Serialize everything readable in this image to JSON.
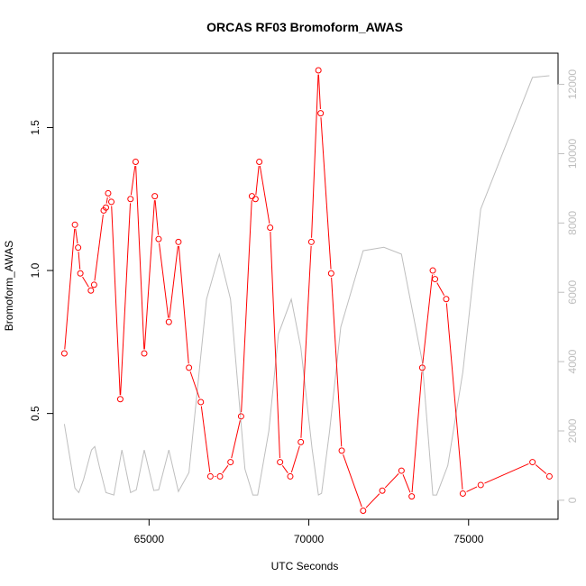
{
  "chart_data": {
    "type": "line",
    "title": "ORCAS RF03 Bromoform_AWAS",
    "xlabel": "UTC Seconds",
    "ylabel": "Bromoform_AWAS",
    "xlim": [
      62000,
      77800
    ],
    "ylim": [
      0.13,
      1.76
    ],
    "y2lim": [
      -550,
      12900
    ],
    "x_ticks": [
      65000,
      70000,
      75000
    ],
    "x_tick_labels": [
      "65000",
      "70000",
      "75000"
    ],
    "y_ticks": [
      0.5,
      1.0,
      1.5
    ],
    "y_tick_labels": [
      "0.5",
      "1.0",
      "1.5"
    ],
    "y2_ticks": [
      0,
      2000,
      4000,
      6000,
      8000,
      10000,
      12000
    ],
    "y2_tick_labels": [
      "0",
      "2000",
      "4000",
      "6000",
      "8000",
      "10000",
      "12000"
    ],
    "grid": false,
    "series": [
      {
        "color": "#ff0000",
        "marker": "open-circle",
        "axis": "left",
        "points": [
          [
            62350,
            0.71
          ],
          [
            62680,
            1.16
          ],
          [
            62780,
            1.08
          ],
          [
            62850,
            0.99
          ],
          [
            63180,
            0.93
          ],
          [
            63280,
            0.95
          ],
          [
            63580,
            1.21
          ],
          [
            63650,
            1.22
          ],
          [
            63720,
            1.27
          ],
          [
            63820,
            1.24
          ],
          [
            64100,
            0.55
          ],
          [
            64420,
            1.25
          ],
          [
            64580,
            1.38
          ],
          [
            64850,
            0.71
          ],
          [
            65180,
            1.26
          ],
          [
            65300,
            1.11
          ],
          [
            65620,
            0.82
          ],
          [
            65920,
            1.1
          ],
          [
            66250,
            0.66
          ],
          [
            66620,
            0.54
          ],
          [
            66920,
            0.28
          ],
          [
            67220,
            0.28
          ],
          [
            67550,
            0.33
          ],
          [
            67880,
            0.49
          ],
          [
            68220,
            1.26
          ],
          [
            68330,
            1.25
          ],
          [
            68450,
            1.38
          ],
          [
            68790,
            1.15
          ],
          [
            69100,
            0.33
          ],
          [
            69420,
            0.28
          ],
          [
            69750,
            0.4
          ],
          [
            70080,
            1.1
          ],
          [
            70300,
            1.7
          ],
          [
            70370,
            1.55
          ],
          [
            70700,
            0.99
          ],
          [
            71030,
            0.37
          ],
          [
            71700,
            0.16
          ],
          [
            72300,
            0.23
          ],
          [
            72900,
            0.3
          ],
          [
            73220,
            0.21
          ],
          [
            73550,
            0.66
          ],
          [
            73880,
            1.0
          ],
          [
            73950,
            0.97
          ],
          [
            74300,
            0.9
          ],
          [
            74820,
            0.22
          ],
          [
            75380,
            0.25
          ],
          [
            77000,
            0.33
          ],
          [
            77530,
            0.28
          ]
        ]
      },
      {
        "color": "#bebebe",
        "marker": "none",
        "axis": "right",
        "points": [
          [
            62350,
            2200
          ],
          [
            62680,
            350
          ],
          [
            62800,
            220
          ],
          [
            62950,
            600
          ],
          [
            63200,
            1450
          ],
          [
            63300,
            1550
          ],
          [
            63450,
            950
          ],
          [
            63650,
            220
          ],
          [
            63900,
            150
          ],
          [
            64150,
            1450
          ],
          [
            64420,
            220
          ],
          [
            64600,
            300
          ],
          [
            64850,
            1450
          ],
          [
            65150,
            280
          ],
          [
            65300,
            300
          ],
          [
            65620,
            1450
          ],
          [
            65920,
            250
          ],
          [
            66250,
            800
          ],
          [
            66800,
            5800
          ],
          [
            67200,
            7100
          ],
          [
            67550,
            5800
          ],
          [
            68000,
            900
          ],
          [
            68250,
            150
          ],
          [
            68400,
            150
          ],
          [
            68750,
            2000
          ],
          [
            69050,
            4800
          ],
          [
            69450,
            5800
          ],
          [
            69750,
            4400
          ],
          [
            70100,
            1500
          ],
          [
            70300,
            150
          ],
          [
            70400,
            200
          ],
          [
            70650,
            2000
          ],
          [
            71000,
            5000
          ],
          [
            71700,
            7200
          ],
          [
            72350,
            7300
          ],
          [
            72900,
            7100
          ],
          [
            73550,
            4000
          ],
          [
            73880,
            150
          ],
          [
            74000,
            150
          ],
          [
            74350,
            1000
          ],
          [
            74820,
            3700
          ],
          [
            75380,
            8400
          ],
          [
            77000,
            12200
          ],
          [
            77530,
            12250
          ]
        ]
      }
    ]
  }
}
